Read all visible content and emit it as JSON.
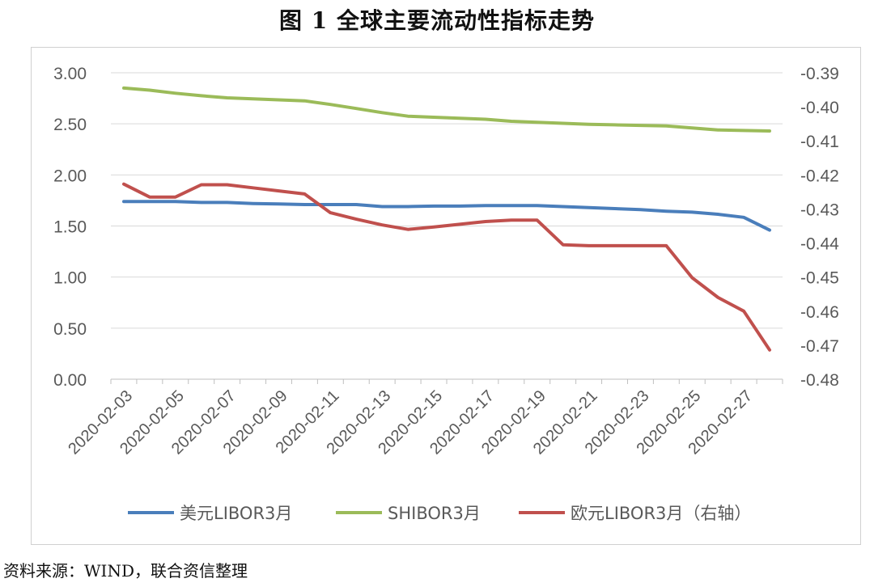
{
  "title": "图 1 全球主要流动性指标走势",
  "source": "资料来源：WIND，联合资信整理",
  "chart_data": {
    "type": "line",
    "title": "图 1 全球主要流动性指标走势",
    "x": [
      "2020-02-03",
      "2020-02-04",
      "2020-02-05",
      "2020-02-06",
      "2020-02-07",
      "2020-02-08",
      "2020-02-09",
      "2020-02-10",
      "2020-02-11",
      "2020-02-12",
      "2020-02-13",
      "2020-02-14",
      "2020-02-15",
      "2020-02-16",
      "2020-02-17",
      "2020-02-18",
      "2020-02-19",
      "2020-02-20",
      "2020-02-21",
      "2020-02-22",
      "2020-02-23",
      "2020-02-24",
      "2020-02-25",
      "2020-02-26",
      "2020-02-27",
      "2020-02-28"
    ],
    "x_tick_labels": [
      "2020-02-03",
      "2020-02-05",
      "2020-02-07",
      "2020-02-09",
      "2020-02-11",
      "2020-02-13",
      "2020-02-15",
      "2020-02-17",
      "2020-02-19",
      "2020-02-21",
      "2020-02-23",
      "2020-02-25",
      "2020-02-27"
    ],
    "y_left": {
      "range": [
        0,
        3
      ],
      "ticks": [
        "0.00",
        "0.50",
        "1.00",
        "1.50",
        "2.00",
        "2.50",
        "3.00"
      ]
    },
    "y_right": {
      "range": [
        -0.48,
        -0.39
      ],
      "ticks": [
        "-0.48",
        "-0.47",
        "-0.46",
        "-0.45",
        "-0.44",
        "-0.43",
        "-0.42",
        "-0.41",
        "-0.40",
        "-0.39"
      ]
    },
    "grid": true,
    "legend_position": "bottom",
    "series": [
      {
        "name": "美元LIBOR3月",
        "axis": "left",
        "color": "#4a7ebb",
        "values": [
          1.74,
          1.74,
          1.74,
          1.73,
          1.73,
          1.72,
          1.715,
          1.71,
          1.71,
          1.71,
          1.69,
          1.69,
          1.695,
          1.695,
          1.7,
          1.7,
          1.7,
          1.69,
          1.68,
          1.67,
          1.66,
          1.645,
          1.635,
          1.615,
          1.585,
          1.46
        ]
      },
      {
        "name": "SHIBOR3月",
        "axis": "left",
        "color": "#9bbb59",
        "values": [
          2.85,
          2.83,
          2.8,
          2.775,
          2.755,
          2.745,
          2.735,
          2.725,
          2.69,
          2.65,
          2.61,
          2.575,
          2.565,
          2.555,
          2.545,
          2.525,
          2.515,
          2.505,
          2.495,
          2.49,
          2.485,
          2.48,
          2.46,
          2.44,
          2.435,
          2.43
        ]
      },
      {
        "name": "欧元LIBOR3月（右轴）",
        "axis": "right",
        "color": "#c0504d",
        "values": [
          -0.4227,
          -0.4265,
          -0.4265,
          -0.4229,
          -0.4229,
          -0.4238,
          -0.4247,
          -0.4256,
          -0.4311,
          -0.433,
          -0.4347,
          -0.436,
          -0.4353,
          -0.4345,
          -0.4337,
          -0.4333,
          -0.4333,
          -0.4405,
          -0.4408,
          -0.4408,
          -0.4408,
          -0.4408,
          -0.4502,
          -0.456,
          -0.46,
          -0.4714
        ]
      }
    ]
  }
}
